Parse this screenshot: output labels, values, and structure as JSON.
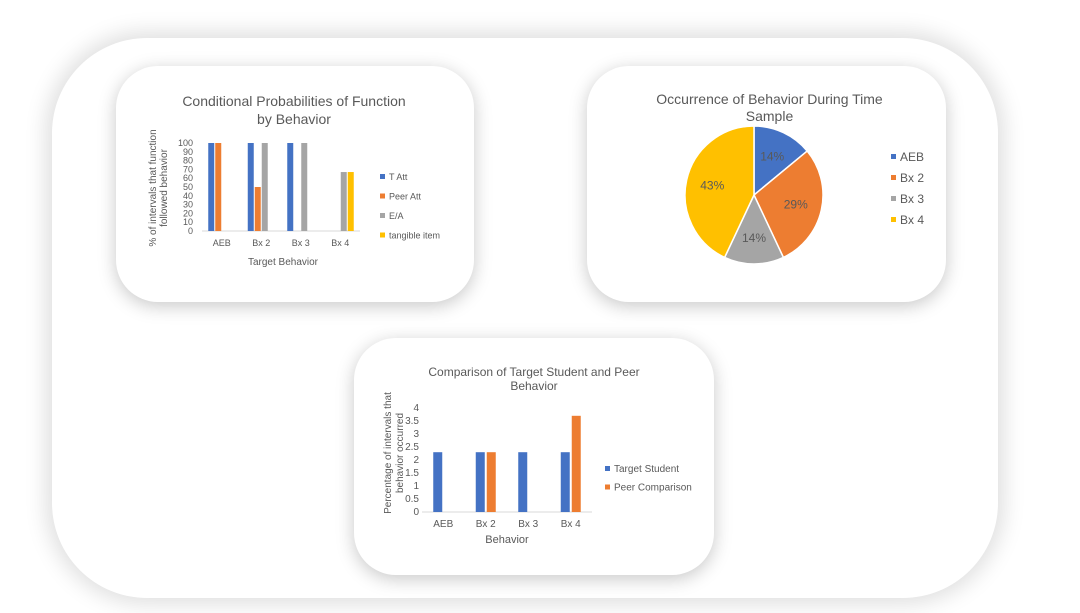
{
  "colors": {
    "blue": "#4472C4",
    "orange": "#ED7D31",
    "gray": "#A5A5A5",
    "yellow": "#FFC000",
    "text": "#595959",
    "axis": "#D9D9D9"
  },
  "chart_data": [
    {
      "type": "bar",
      "title_line1": "Conditional Probabilities of Function",
      "title_line2": "by Behavior",
      "xlabel": "Target Behavior",
      "ylabel_line1": "% of intervals that function",
      "ylabel_line2": "followed behavior",
      "categories": [
        "AEB",
        "Bx 2",
        "Bx 3",
        "Bx 4"
      ],
      "ylim": [
        0,
        100
      ],
      "yticks": [
        "0",
        "10",
        "20",
        "30",
        "40",
        "50",
        "60",
        "70",
        "80",
        "90",
        "100"
      ],
      "legend_position": "right",
      "series": [
        {
          "name": "T Att",
          "color": "#4472C4",
          "values": [
            100,
            100,
            100,
            0
          ]
        },
        {
          "name": "Peer Att",
          "color": "#ED7D31",
          "values": [
            100,
            50,
            0,
            0
          ]
        },
        {
          "name": "E/A",
          "color": "#A5A5A5",
          "values": [
            0,
            100,
            100,
            67
          ]
        },
        {
          "name": "tangible item",
          "color": "#FFC000",
          "values": [
            0,
            0,
            0,
            67
          ]
        }
      ]
    },
    {
      "type": "pie",
      "title_line1": "Occurrence of Behavior During Time",
      "title_line2": "Sample",
      "legend_position": "right",
      "slices": [
        {
          "name": "AEB",
          "value": 14,
          "label": "14%",
          "color": "#4472C4"
        },
        {
          "name": "Bx 2",
          "value": 29,
          "label": "29%",
          "color": "#ED7D31"
        },
        {
          "name": "Bx 3",
          "value": 14,
          "label": "14%",
          "color": "#A5A5A5"
        },
        {
          "name": "Bx 4",
          "value": 43,
          "label": "43%",
          "color": "#FFC000"
        }
      ]
    },
    {
      "type": "bar",
      "title_line1": "Comparison of Target Student and Peer",
      "title_line2": "Behavior",
      "xlabel": "Behavior",
      "ylabel_line1": "Percentage of intervals that",
      "ylabel_line2": "behavior occurred",
      "categories": [
        "AEB",
        "Bx 2",
        "Bx 3",
        "Bx 4"
      ],
      "ylim": [
        0,
        4
      ],
      "yticks": [
        "0",
        "0.5",
        "1",
        "1.5",
        "2",
        "2.5",
        "3",
        "3.5",
        "4"
      ],
      "legend_position": "right",
      "series": [
        {
          "name": "Target Student",
          "color": "#4472C4",
          "values": [
            2.3,
            2.3,
            2.3,
            2.3
          ]
        },
        {
          "name": "Peer Comparison",
          "color": "#ED7D31",
          "values": [
            0,
            2.3,
            0,
            3.7
          ]
        }
      ]
    }
  ]
}
